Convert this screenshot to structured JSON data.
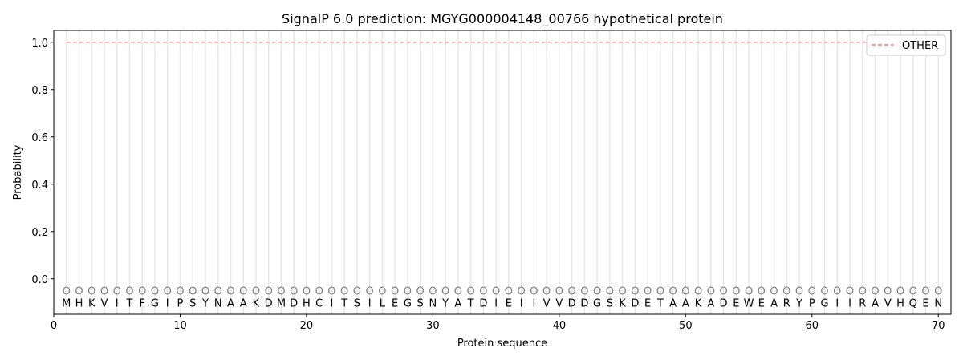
{
  "chart_data": {
    "type": "line",
    "title": "SignalP 6.0 prediction: MGYG000004148_00766 hypothetical protein",
    "xlabel": "Protein sequence",
    "ylabel": "Probability",
    "xlim": [
      0,
      71
    ],
    "ylim": [
      -0.15,
      1.05
    ],
    "xticks": [
      0,
      10,
      20,
      30,
      40,
      50,
      60,
      70
    ],
    "yticks": [
      0.0,
      0.2,
      0.4,
      0.6,
      0.8,
      1.0
    ],
    "ytick_labels": [
      "0.0",
      "0.2",
      "0.4",
      "0.6",
      "0.8",
      "1.0"
    ],
    "grid": "vertical lines at each residue",
    "legend_placement": "top-right",
    "sequence": "MHKVITFGIPSYNAAKDMDHCITSILEGSNYATDIEIIVVDDGSKDETAAKADEWEARYPGIIRAVHQEN",
    "region_labels": "OOOOOOOOOOOOOOOOOOOOOOOOOOOOOOOOOOOOOOOOOOOOOOOOOOOOOOOOOOOOOOOOOOOOOO",
    "series": [
      {
        "name": "OTHER",
        "color": "#f08080",
        "style": "dashed",
        "x_start": 1,
        "x_end": 70,
        "value": 1.0
      }
    ]
  }
}
